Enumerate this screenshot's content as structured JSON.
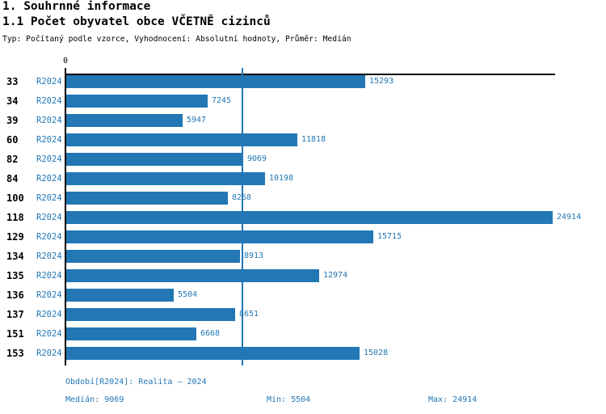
{
  "header": {
    "title": "1. Souhrnné informace",
    "subtitle": "1.1 Počet obyvatel obce VČETNĚ cizinců",
    "meta": "Typ: Počítaný podle vzorce, Vyhodnocení: Absolutní hodnoty, Průměr: Medián"
  },
  "chart_data": {
    "type": "bar",
    "orientation": "horizontal",
    "categories": [
      "33",
      "34",
      "39",
      "60",
      "82",
      "84",
      "100",
      "118",
      "129",
      "134",
      "135",
      "136",
      "137",
      "151",
      "153"
    ],
    "period_label": "R2024",
    "values": [
      15293,
      7245,
      5947,
      11818,
      9069,
      10198,
      8268,
      24914,
      15715,
      8913,
      12974,
      5504,
      8651,
      6668,
      15028
    ],
    "x_axis_ticks": [
      "0"
    ],
    "xlim": [
      0,
      25100
    ],
    "median_line": 9069,
    "bar_color": "#2277b4",
    "grid": "single vertical median gridline",
    "legend": "none",
    "title": "1.1 Počet obyvatel obce VČETNĚ cizinců"
  },
  "footer": {
    "period": "Období[R2024]: Realita – 2024",
    "median": "Medián: 9069",
    "min": "Min: 5504",
    "max": "Max: 24914"
  }
}
